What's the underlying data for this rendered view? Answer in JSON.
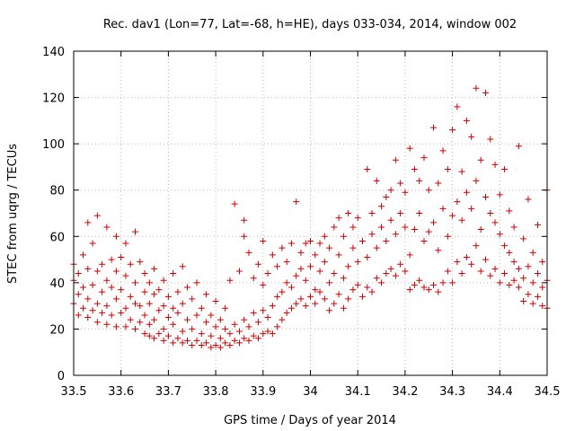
{
  "chart_data": {
    "type": "scatter",
    "title": "Rec. dav1 (Lon=77, Lat=-68, h=HE), days 033-034, 2014, window 002",
    "xlabel": "GPS time / Days of year 2014",
    "ylabel": "STEC from uqrg / TECUs",
    "xlim": [
      33.5,
      34.5
    ],
    "ylim": [
      0,
      140
    ],
    "xticks": [
      "33.5",
      "33.6",
      "33.7",
      "33.8",
      "33.9",
      "34",
      "34.1",
      "34.2",
      "34.3",
      "34.4",
      "34.5"
    ],
    "yticks": [
      "0",
      "20",
      "40",
      "60",
      "80",
      "100",
      "120",
      "140"
    ],
    "grid": true,
    "marker": "+",
    "color": "#cc0000",
    "series": [
      {
        "points": [
          [
            33.5,
            31
          ],
          [
            33.5,
            41
          ],
          [
            33.5,
            48
          ],
          [
            33.51,
            26
          ],
          [
            33.51,
            35
          ],
          [
            33.51,
            44
          ],
          [
            33.52,
            29
          ],
          [
            33.52,
            38
          ],
          [
            33.52,
            52
          ],
          [
            33.53,
            25
          ],
          [
            33.53,
            33
          ],
          [
            33.53,
            46
          ],
          [
            33.53,
            66
          ],
          [
            33.54,
            28
          ],
          [
            33.54,
            39
          ],
          [
            33.54,
            57
          ],
          [
            33.55,
            23
          ],
          [
            33.55,
            31
          ],
          [
            33.55,
            45
          ],
          [
            33.55,
            69
          ],
          [
            33.56,
            27
          ],
          [
            33.56,
            36
          ],
          [
            33.56,
            48
          ],
          [
            33.57,
            22
          ],
          [
            33.57,
            30
          ],
          [
            33.57,
            41
          ],
          [
            33.57,
            64
          ],
          [
            33.58,
            26
          ],
          [
            33.58,
            38
          ],
          [
            33.58,
            50
          ],
          [
            33.59,
            21
          ],
          [
            33.59,
            33
          ],
          [
            33.59,
            45
          ],
          [
            33.59,
            60
          ],
          [
            33.6,
            27
          ],
          [
            33.6,
            37
          ],
          [
            33.6,
            51
          ],
          [
            33.61,
            21
          ],
          [
            33.61,
            29
          ],
          [
            33.61,
            43
          ],
          [
            33.61,
            57
          ],
          [
            33.62,
            24
          ],
          [
            33.62,
            34
          ],
          [
            33.62,
            48
          ],
          [
            33.63,
            20
          ],
          [
            33.63,
            31
          ],
          [
            33.63,
            40
          ],
          [
            33.63,
            62
          ],
          [
            33.64,
            23
          ],
          [
            33.64,
            30
          ],
          [
            33.64,
            49
          ],
          [
            33.65,
            18
          ],
          [
            33.65,
            26
          ],
          [
            33.65,
            36
          ],
          [
            33.65,
            44
          ],
          [
            33.66,
            17
          ],
          [
            33.66,
            22
          ],
          [
            33.66,
            31
          ],
          [
            33.66,
            40
          ],
          [
            33.67,
            16
          ],
          [
            33.67,
            24
          ],
          [
            33.67,
            35
          ],
          [
            33.67,
            46
          ],
          [
            33.68,
            18
          ],
          [
            33.68,
            28
          ],
          [
            33.68,
            37
          ],
          [
            33.69,
            15
          ],
          [
            33.69,
            20
          ],
          [
            33.69,
            30
          ],
          [
            33.69,
            41
          ],
          [
            33.7,
            17
          ],
          [
            33.7,
            25
          ],
          [
            33.7,
            34
          ],
          [
            33.71,
            14
          ],
          [
            33.71,
            22
          ],
          [
            33.71,
            29
          ],
          [
            33.71,
            44
          ],
          [
            33.72,
            16
          ],
          [
            33.72,
            27
          ],
          [
            33.72,
            36
          ],
          [
            33.73,
            14
          ],
          [
            33.73,
            19
          ],
          [
            33.73,
            31
          ],
          [
            33.73,
            47
          ],
          [
            33.74,
            15
          ],
          [
            33.74,
            24
          ],
          [
            33.74,
            38
          ],
          [
            33.75,
            13
          ],
          [
            33.75,
            20
          ],
          [
            33.75,
            33
          ],
          [
            33.76,
            15
          ],
          [
            33.76,
            26
          ],
          [
            33.76,
            40
          ],
          [
            33.77,
            13
          ],
          [
            33.77,
            18
          ],
          [
            33.77,
            29
          ],
          [
            33.78,
            14
          ],
          [
            33.78,
            23
          ],
          [
            33.78,
            35
          ],
          [
            33.79,
            12
          ],
          [
            33.79,
            17
          ],
          [
            33.79,
            26
          ],
          [
            33.8,
            13
          ],
          [
            33.8,
            21
          ],
          [
            33.8,
            32
          ],
          [
            33.81,
            12
          ],
          [
            33.81,
            16
          ],
          [
            33.81,
            24
          ],
          [
            33.82,
            14
          ],
          [
            33.82,
            20
          ],
          [
            33.82,
            29
          ],
          [
            33.83,
            13
          ],
          [
            33.83,
            18
          ],
          [
            33.83,
            41
          ],
          [
            33.84,
            15
          ],
          [
            33.84,
            22
          ],
          [
            33.84,
            74
          ],
          [
            33.85,
            14
          ],
          [
            33.85,
            19
          ],
          [
            33.85,
            45
          ],
          [
            33.86,
            16
          ],
          [
            33.86,
            24
          ],
          [
            33.86,
            60
          ],
          [
            33.86,
            67
          ],
          [
            33.87,
            15
          ],
          [
            33.87,
            21
          ],
          [
            33.87,
            53
          ],
          [
            33.88,
            17
          ],
          [
            33.88,
            27
          ],
          [
            33.88,
            42
          ],
          [
            33.89,
            16
          ],
          [
            33.89,
            23
          ],
          [
            33.89,
            48
          ],
          [
            33.9,
            18
          ],
          [
            33.9,
            28
          ],
          [
            33.9,
            39
          ],
          [
            33.9,
            58
          ],
          [
            33.91,
            19
          ],
          [
            33.91,
            25
          ],
          [
            33.91,
            44
          ],
          [
            33.92,
            18
          ],
          [
            33.92,
            30
          ],
          [
            33.92,
            52
          ],
          [
            33.93,
            21
          ],
          [
            33.93,
            34
          ],
          [
            33.93,
            47
          ],
          [
            33.94,
            24
          ],
          [
            33.94,
            36
          ],
          [
            33.94,
            55
          ],
          [
            33.95,
            27
          ],
          [
            33.95,
            40
          ],
          [
            33.95,
            49
          ],
          [
            33.96,
            29
          ],
          [
            33.96,
            38
          ],
          [
            33.96,
            57
          ],
          [
            33.97,
            31
          ],
          [
            33.97,
            43
          ],
          [
            33.97,
            75
          ],
          [
            33.98,
            33
          ],
          [
            33.98,
            46
          ],
          [
            33.98,
            53
          ],
          [
            33.99,
            30
          ],
          [
            33.99,
            41
          ],
          [
            33.99,
            57
          ],
          [
            34.0,
            34
          ],
          [
            34.0,
            47
          ],
          [
            34.0,
            58
          ],
          [
            34.01,
            31
          ],
          [
            34.01,
            37
          ],
          [
            34.01,
            52
          ],
          [
            34.02,
            36
          ],
          [
            34.02,
            45
          ],
          [
            34.02,
            57
          ],
          [
            34.03,
            33
          ],
          [
            34.03,
            49
          ],
          [
            34.03,
            60
          ],
          [
            34.04,
            28
          ],
          [
            34.04,
            40
          ],
          [
            34.04,
            55
          ],
          [
            34.05,
            31
          ],
          [
            34.05,
            44
          ],
          [
            34.05,
            64
          ],
          [
            34.06,
            35
          ],
          [
            34.06,
            52
          ],
          [
            34.06,
            68
          ],
          [
            34.07,
            29
          ],
          [
            34.07,
            42
          ],
          [
            34.07,
            60
          ],
          [
            34.08,
            33
          ],
          [
            34.08,
            47
          ],
          [
            34.08,
            70
          ],
          [
            34.09,
            37
          ],
          [
            34.09,
            55
          ],
          [
            34.09,
            64
          ],
          [
            34.1,
            39
          ],
          [
            34.1,
            49
          ],
          [
            34.1,
            68
          ],
          [
            34.11,
            34
          ],
          [
            34.11,
            58
          ],
          [
            34.12,
            38
          ],
          [
            34.12,
            51
          ],
          [
            34.12,
            89
          ],
          [
            34.13,
            36
          ],
          [
            34.13,
            61
          ],
          [
            34.13,
            70
          ],
          [
            34.14,
            42
          ],
          [
            34.14,
            55
          ],
          [
            34.14,
            84
          ],
          [
            34.15,
            40
          ],
          [
            34.15,
            64
          ],
          [
            34.15,
            73
          ],
          [
            34.16,
            44
          ],
          [
            34.16,
            58
          ],
          [
            34.16,
            77
          ],
          [
            34.17,
            46
          ],
          [
            34.17,
            67
          ],
          [
            34.17,
            80
          ],
          [
            34.18,
            43
          ],
          [
            34.18,
            61
          ],
          [
            34.18,
            93
          ],
          [
            34.19,
            48
          ],
          [
            34.19,
            70
          ],
          [
            34.19,
            83
          ],
          [
            34.2,
            45
          ],
          [
            34.2,
            64
          ],
          [
            34.2,
            79
          ],
          [
            34.21,
            37
          ],
          [
            34.21,
            52
          ],
          [
            34.21,
            98
          ],
          [
            34.22,
            39
          ],
          [
            34.22,
            63
          ],
          [
            34.22,
            89
          ],
          [
            34.23,
            41
          ],
          [
            34.23,
            70
          ],
          [
            34.23,
            84
          ],
          [
            34.24,
            38
          ],
          [
            34.24,
            58
          ],
          [
            34.24,
            94
          ],
          [
            34.25,
            37
          ],
          [
            34.25,
            62
          ],
          [
            34.25,
            80
          ],
          [
            34.26,
            39
          ],
          [
            34.26,
            66
          ],
          [
            34.26,
            107
          ],
          [
            34.27,
            36
          ],
          [
            34.27,
            54
          ],
          [
            34.27,
            83
          ],
          [
            34.28,
            40
          ],
          [
            34.28,
            72
          ],
          [
            34.28,
            97
          ],
          [
            34.29,
            45
          ],
          [
            34.29,
            60
          ],
          [
            34.29,
            89
          ],
          [
            34.3,
            40
          ],
          [
            34.3,
            69
          ],
          [
            34.3,
            106
          ],
          [
            34.31,
            49
          ],
          [
            34.31,
            75
          ],
          [
            34.31,
            116
          ],
          [
            34.32,
            44
          ],
          [
            34.32,
            67
          ],
          [
            34.32,
            88
          ],
          [
            34.33,
            51
          ],
          [
            34.33,
            79
          ],
          [
            34.33,
            110
          ],
          [
            34.34,
            48
          ],
          [
            34.34,
            72
          ],
          [
            34.34,
            103
          ],
          [
            34.35,
            56
          ],
          [
            34.35,
            84
          ],
          [
            34.35,
            124
          ],
          [
            34.36,
            45
          ],
          [
            34.36,
            63
          ],
          [
            34.36,
            93
          ],
          [
            34.37,
            50
          ],
          [
            34.37,
            77
          ],
          [
            34.37,
            122
          ],
          [
            34.38,
            43
          ],
          [
            34.38,
            70
          ],
          [
            34.38,
            102
          ],
          [
            34.39,
            46
          ],
          [
            34.39,
            66
          ],
          [
            34.39,
            91
          ],
          [
            34.4,
            40
          ],
          [
            34.4,
            61
          ],
          [
            34.4,
            78
          ],
          [
            34.41,
            44
          ],
          [
            34.41,
            56
          ],
          [
            34.41,
            89
          ],
          [
            34.42,
            39
          ],
          [
            34.42,
            53
          ],
          [
            34.42,
            71
          ],
          [
            34.43,
            41
          ],
          [
            34.43,
            49
          ],
          [
            34.43,
            64
          ],
          [
            34.44,
            38
          ],
          [
            34.44,
            46
          ],
          [
            34.44,
            99
          ],
          [
            34.45,
            32
          ],
          [
            34.45,
            42
          ],
          [
            34.45,
            59
          ],
          [
            34.46,
            35
          ],
          [
            34.46,
            47
          ],
          [
            34.46,
            76
          ],
          [
            34.47,
            31
          ],
          [
            34.47,
            40
          ],
          [
            34.47,
            53
          ],
          [
            34.48,
            34
          ],
          [
            34.48,
            44
          ],
          [
            34.48,
            65
          ],
          [
            34.49,
            30
          ],
          [
            34.49,
            38
          ],
          [
            34.49,
            49
          ],
          [
            34.5,
            29
          ],
          [
            34.5,
            41
          ],
          [
            34.5,
            80
          ]
        ]
      }
    ]
  }
}
